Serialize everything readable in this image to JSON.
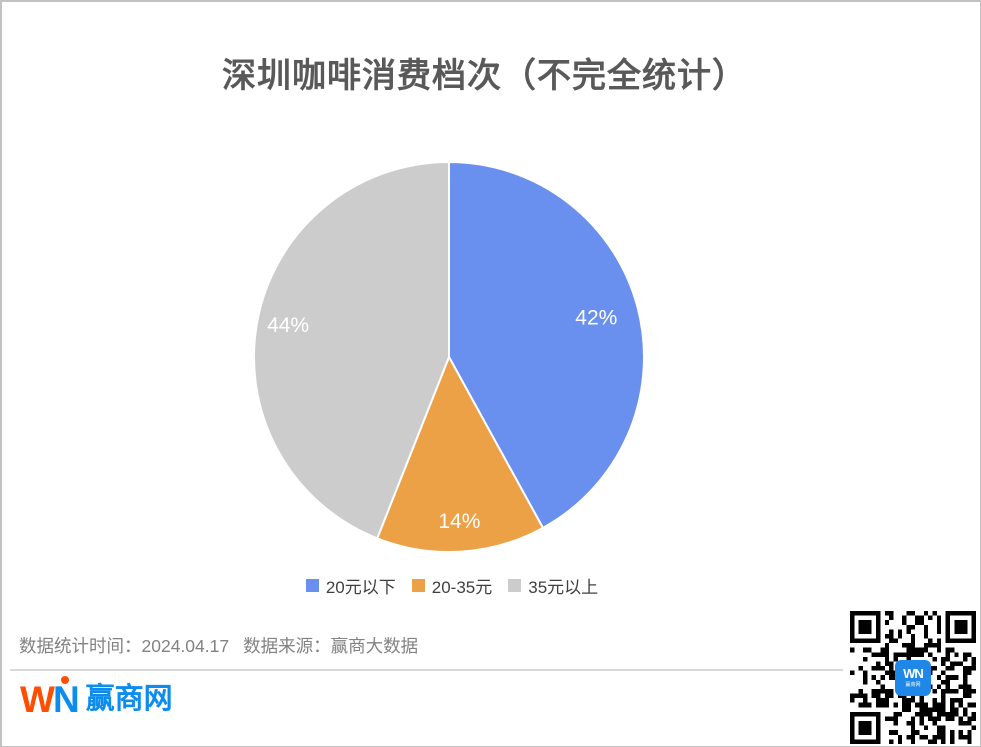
{
  "chart_data": {
    "type": "pie",
    "title": "深圳咖啡消费档次（不完全统计）",
    "categories": [
      "20元以下",
      "20-35元",
      "35元以上"
    ],
    "values": [
      42,
      14,
      44
    ],
    "value_labels": [
      "42%",
      "14%",
      "44%"
    ],
    "colors": [
      "#6a90ef",
      "#eda147",
      "#cccccc"
    ],
    "slice_label_color": "#ffffff",
    "legend_position": "bottom",
    "start_angle": "top",
    "direction": "clockwise",
    "title_color": "#595959"
  },
  "footer": {
    "stat_time": "数据统计时间：2024.04.17",
    "source": "数据来源：赢商大数据"
  },
  "logo": {
    "letter_w": "W",
    "letter_n": "N",
    "site_name": "赢商网",
    "w_color": "#ff4e00",
    "n_color": "#0d8cf0"
  },
  "qr_badge": {
    "text": "WN",
    "subtext": "赢商网",
    "color": "#1f87e8"
  }
}
